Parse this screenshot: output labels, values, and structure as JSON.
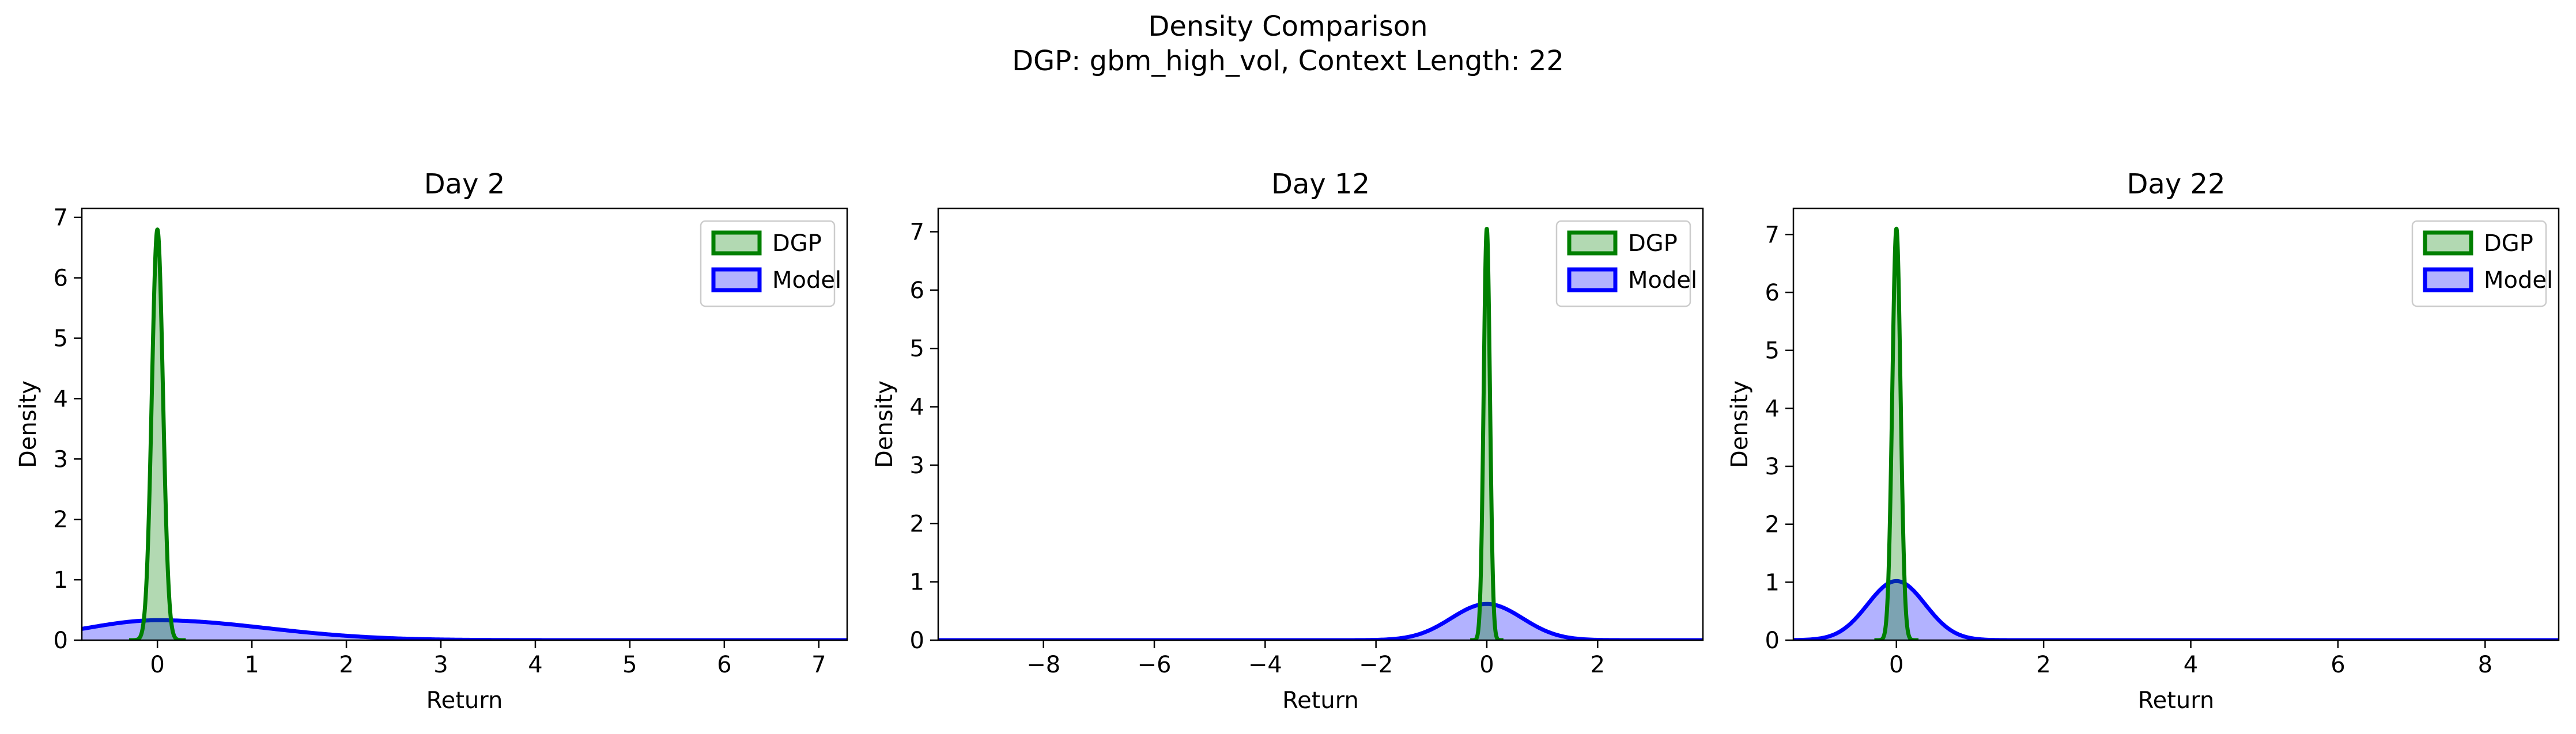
{
  "figure": {
    "title_line1": "Density Comparison",
    "title_line2": "DGP: gbm_high_vol, Context Length: 22"
  },
  "colors": {
    "dgp_line": "#008000",
    "dgp_fill": "#008000",
    "model_line": "#0000ff",
    "model_fill": "#0000ff"
  },
  "chart_data": [
    {
      "type": "area",
      "title": "Day 2",
      "xlabel": "Return",
      "ylabel": "Density",
      "xlim": [
        -0.8,
        7.3
      ],
      "ylim": [
        0,
        7.15
      ],
      "xticks": [
        0,
        1,
        2,
        3,
        4,
        5,
        6,
        7
      ],
      "yticks": [
        0,
        1,
        2,
        3,
        4,
        5,
        6,
        7
      ],
      "grid": false,
      "legend": "top-right",
      "series": [
        {
          "name": "DGP",
          "distribution": "gaussian",
          "mean": 0.0,
          "peak": 6.8,
          "x_min": -0.3,
          "x_max": 0.3
        },
        {
          "name": "Model",
          "distribution": "skewed",
          "mode": 0.0,
          "peak": 0.33,
          "x_min": -0.8,
          "x_max": 7.3
        }
      ]
    },
    {
      "type": "area",
      "title": "Day 12",
      "xlabel": "Return",
      "ylabel": "Density",
      "xlim": [
        -9.9,
        3.9
      ],
      "ylim": [
        0,
        7.4
      ],
      "xticks": [
        -8,
        -6,
        -4,
        -2,
        0,
        2
      ],
      "yticks": [
        0,
        1,
        2,
        3,
        4,
        5,
        6,
        7
      ],
      "grid": false,
      "legend": "top-right",
      "series": [
        {
          "name": "DGP",
          "distribution": "gaussian",
          "mean": 0.0,
          "peak": 7.05,
          "x_min": -0.3,
          "x_max": 0.3
        },
        {
          "name": "Model",
          "distribution": "gaussian",
          "mean": 0.0,
          "peak": 0.62,
          "x_min": -9.9,
          "x_max": 3.9
        }
      ]
    },
    {
      "type": "area",
      "title": "Day 22",
      "xlabel": "Return",
      "ylabel": "Density",
      "xlim": [
        -1.4,
        9.0
      ],
      "ylim": [
        0,
        7.45
      ],
      "xticks": [
        0,
        2,
        4,
        6,
        8
      ],
      "yticks": [
        0,
        1,
        2,
        3,
        4,
        5,
        6,
        7
      ],
      "grid": false,
      "legend": "top-right",
      "series": [
        {
          "name": "DGP",
          "distribution": "gaussian",
          "mean": 0.0,
          "peak": 7.1,
          "x_min": -0.3,
          "x_max": 0.3
        },
        {
          "name": "Model",
          "distribution": "gaussian",
          "mean": 0.0,
          "peak": 1.02,
          "x_min": -1.4,
          "x_max": 9.0
        }
      ]
    }
  ]
}
